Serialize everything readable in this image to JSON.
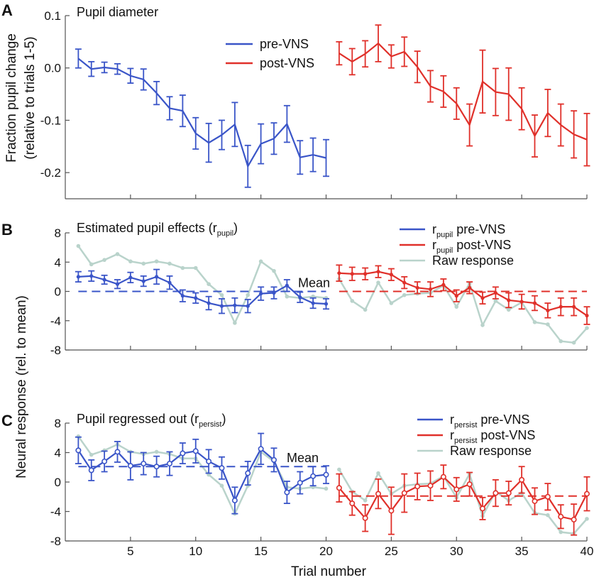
{
  "colors": {
    "pre": "#3a55c8",
    "post": "#e0302a",
    "raw": "#b9d3cb",
    "axis": "#555555"
  },
  "xaxis": {
    "label": "Trial number",
    "ticks": [
      5,
      10,
      15,
      20,
      25,
      30,
      35,
      40
    ],
    "xlim": [
      0,
      40
    ]
  },
  "ylabels": {
    "a_line1": "Fraction pupil change",
    "a_line2": "(relative to trials 1-5)",
    "bc": "Neural response (rel. to mean)"
  },
  "chart_data": [
    {
      "id": "A",
      "type": "line",
      "panel_letter": "A",
      "title": "Pupil diameter",
      "ylim": [
        -0.25,
        0.1
      ],
      "yticks": [
        0.1,
        0.0,
        -0.1,
        -0.2
      ],
      "ytick_labels": [
        "0.1",
        "0.0",
        "-0.1",
        "-0.2"
      ],
      "legend": [
        {
          "text": "pre-VNS",
          "color": "pre"
        },
        {
          "text": "post-VNS",
          "color": "post"
        }
      ],
      "series": [
        {
          "name": "pre-VNS",
          "color": "pre",
          "marker": "none",
          "x": [
            1,
            2,
            3,
            4,
            5,
            6,
            7,
            8,
            9,
            10,
            11,
            12,
            13,
            14,
            15,
            16,
            17,
            18,
            19,
            20
          ],
          "values": [
            0.018,
            -0.002,
            0.001,
            -0.002,
            -0.015,
            -0.022,
            -0.048,
            -0.077,
            -0.082,
            -0.125,
            -0.143,
            -0.128,
            -0.108,
            -0.188,
            -0.145,
            -0.135,
            -0.107,
            -0.171,
            -0.166,
            -0.172
          ],
          "errors": [
            0.018,
            0.014,
            0.01,
            0.01,
            0.014,
            0.02,
            0.022,
            0.022,
            0.03,
            0.03,
            0.037,
            0.028,
            0.042,
            0.04,
            0.038,
            0.03,
            0.035,
            0.032,
            0.032,
            0.035
          ]
        },
        {
          "name": "post-VNS",
          "color": "post",
          "marker": "none",
          "x": [
            21,
            22,
            23,
            24,
            25,
            26,
            27,
            28,
            29,
            30,
            31,
            32,
            33,
            34,
            35,
            36,
            37,
            38,
            39,
            40
          ],
          "values": [
            0.028,
            0.012,
            0.027,
            0.047,
            0.022,
            0.031,
            0.002,
            -0.035,
            -0.045,
            -0.068,
            -0.109,
            -0.026,
            -0.046,
            -0.05,
            -0.078,
            -0.13,
            -0.086,
            -0.109,
            -0.127,
            -0.137
          ],
          "errors": [
            0.022,
            0.025,
            0.025,
            0.035,
            0.022,
            0.028,
            0.03,
            0.03,
            0.03,
            0.03,
            0.04,
            0.06,
            0.045,
            0.05,
            0.04,
            0.04,
            0.045,
            0.04,
            0.045,
            0.05
          ]
        }
      ]
    },
    {
      "id": "B",
      "type": "line",
      "panel_letter": "B",
      "title": "Estimated pupil effects (r",
      "title_sub": "pupil",
      "title_end": ")",
      "ylim": [
        -8,
        8
      ],
      "yticks": [
        8,
        4,
        0,
        -4,
        -8
      ],
      "ytick_labels": [
        "8",
        "4",
        "0",
        "-4",
        "-8"
      ],
      "mean_label": "Mean",
      "means": [
        {
          "x_from": 1,
          "x_to": 20,
          "value": 0.0,
          "color": "pre"
        },
        {
          "x_from": 21,
          "x_to": 40,
          "value": 0.0,
          "color": "post"
        }
      ],
      "legend": [
        {
          "text": "r",
          "sub": "pupil",
          "rest": " pre-VNS",
          "color": "pre"
        },
        {
          "text": "r",
          "sub": "pupil",
          "rest": " post-VNS",
          "color": "post"
        },
        {
          "text": "Raw response",
          "sub": "",
          "rest": "",
          "color": "raw"
        }
      ],
      "raw": {
        "pre": {
          "x": [
            1,
            2,
            3,
            4,
            5,
            6,
            7,
            8,
            9,
            10,
            11,
            12,
            13,
            14,
            15,
            16,
            17,
            18,
            19,
            20
          ],
          "values": [
            6.2,
            3.7,
            4.3,
            5.1,
            4.1,
            3.8,
            4.1,
            3.8,
            3.2,
            3.2,
            1.0,
            -0.5,
            -4.3,
            -0.5,
            4.1,
            2.8,
            -0.7,
            -0.9,
            -0.7,
            -0.9
          ]
        },
        "post": {
          "x": [
            21,
            22,
            23,
            24,
            25,
            26,
            27,
            28,
            29,
            30,
            31,
            32,
            33,
            34,
            35,
            36,
            37,
            38,
            39,
            40
          ],
          "values": [
            1.7,
            -1.3,
            -2.5,
            1.2,
            -1.6,
            -0.5,
            -0.3,
            -0.2,
            0.8,
            -2.1,
            1.1,
            -4.6,
            -1.3,
            -2.5,
            -1.5,
            -4.2,
            -4.5,
            -6.8,
            -7.0,
            -5.0
          ]
        }
      },
      "series": [
        {
          "name": "r pupil pre-VNS",
          "color": "pre",
          "marker": "dot",
          "x": [
            1,
            2,
            3,
            4,
            5,
            6,
            7,
            8,
            9,
            10,
            11,
            12,
            13,
            14,
            15,
            16,
            17,
            18,
            19,
            20
          ],
          "values": [
            2.0,
            2.1,
            1.6,
            1.0,
            1.9,
            1.4,
            2.0,
            1.2,
            -0.6,
            -0.9,
            -1.6,
            -2.0,
            -1.9,
            -2.0,
            -0.3,
            -0.2,
            0.8,
            -0.8,
            -1.6,
            -1.7
          ],
          "errors": [
            0.7,
            0.7,
            0.6,
            0.6,
            0.7,
            0.7,
            1.0,
            0.9,
            0.8,
            0.7,
            0.9,
            1.0,
            1.0,
            0.9,
            0.9,
            0.8,
            0.8,
            0.7,
            0.7,
            0.7
          ]
        },
        {
          "name": "r pupil post-VNS",
          "color": "post",
          "marker": "dot",
          "x": [
            21,
            22,
            23,
            24,
            25,
            26,
            27,
            28,
            29,
            30,
            31,
            32,
            33,
            34,
            35,
            36,
            37,
            38,
            39,
            40
          ],
          "values": [
            2.5,
            2.4,
            2.4,
            2.7,
            2.3,
            1.2,
            0.5,
            0.3,
            0.9,
            -0.6,
            0.5,
            -0.9,
            -0.2,
            -1.2,
            -1.4,
            -1.6,
            -2.6,
            -2.1,
            -2.1,
            -3.3
          ],
          "errors": [
            1.1,
            0.9,
            0.8,
            0.8,
            0.8,
            0.8,
            0.8,
            1.0,
            0.8,
            0.8,
            0.8,
            0.8,
            0.8,
            1.0,
            1.0,
            1.0,
            1.0,
            1.2,
            1.2,
            1.2
          ]
        }
      ]
    },
    {
      "id": "C",
      "type": "line",
      "panel_letter": "C",
      "title": "Pupil regressed out (r",
      "title_sub": "persist",
      "title_end": ")",
      "ylim": [
        -8,
        8
      ],
      "yticks": [
        8,
        4,
        0,
        -4,
        -8
      ],
      "ytick_labels": [
        "8",
        "4",
        "0",
        "-4",
        "-8"
      ],
      "mean_label": "Mean",
      "means": [
        {
          "x_from": 1,
          "x_to": 20,
          "value": 2.1,
          "color": "pre"
        },
        {
          "x_from": 21,
          "x_to": 40,
          "value": -1.9,
          "color": "post"
        }
      ],
      "legend": [
        {
          "text": "r",
          "sub": "persist",
          "rest": " pre-VNS",
          "color": "pre"
        },
        {
          "text": "r",
          "sub": "persist",
          "rest": " post-VNS",
          "color": "post"
        },
        {
          "text": "Raw response",
          "sub": "",
          "rest": "",
          "color": "raw"
        }
      ],
      "raw": {
        "pre": {
          "x": [
            1,
            2,
            3,
            4,
            5,
            6,
            7,
            8,
            9,
            10,
            11,
            12,
            13,
            14,
            15,
            16,
            17,
            18,
            19,
            20
          ],
          "values": [
            6.2,
            3.7,
            4.3,
            5.1,
            4.1,
            3.8,
            4.1,
            3.8,
            3.2,
            3.2,
            1.0,
            -0.5,
            -4.3,
            -0.5,
            4.1,
            2.8,
            -0.7,
            -0.9,
            -0.7,
            -0.9
          ]
        },
        "post": {
          "x": [
            21,
            22,
            23,
            24,
            25,
            26,
            27,
            28,
            29,
            30,
            31,
            32,
            33,
            34,
            35,
            36,
            37,
            38,
            39,
            40
          ],
          "values": [
            1.7,
            -1.3,
            -2.5,
            1.2,
            -1.6,
            -0.5,
            -0.3,
            -0.2,
            0.8,
            -2.1,
            1.1,
            -4.6,
            -1.3,
            -2.5,
            -1.5,
            -4.2,
            -4.5,
            -6.8,
            -7.0,
            -5.0
          ]
        }
      },
      "series": [
        {
          "name": "r persist pre-VNS",
          "color": "pre",
          "marker": "circle",
          "x": [
            1,
            2,
            3,
            4,
            5,
            6,
            7,
            8,
            9,
            10,
            11,
            12,
            13,
            14,
            15,
            16,
            17,
            18,
            19,
            20
          ],
          "values": [
            4.3,
            1.6,
            2.8,
            4.1,
            2.2,
            2.5,
            2.1,
            2.5,
            3.9,
            4.2,
            2.8,
            1.9,
            -2.5,
            1.2,
            4.5,
            3.0,
            -1.4,
            -0.1,
            0.8,
            1.0
          ],
          "errors": [
            1.8,
            1.4,
            1.4,
            1.4,
            1.9,
            1.5,
            1.4,
            1.6,
            1.4,
            1.6,
            1.6,
            1.5,
            1.8,
            1.6,
            2.1,
            1.6,
            1.5,
            1.5,
            1.3,
            1.2
          ]
        },
        {
          "name": "r persist post-VNS",
          "color": "post",
          "marker": "circle",
          "x": [
            21,
            22,
            23,
            24,
            25,
            26,
            27,
            28,
            29,
            30,
            31,
            32,
            33,
            34,
            35,
            36,
            37,
            38,
            39,
            40
          ],
          "values": [
            -0.8,
            -2.9,
            -4.9,
            -1.6,
            -3.9,
            -1.5,
            -0.6,
            -0.5,
            0.7,
            -1.0,
            -0.3,
            -3.6,
            -1.5,
            -1.5,
            0.3,
            -2.6,
            -2.0,
            -4.7,
            -5.1,
            -1.6
          ],
          "errors": [
            1.9,
            1.6,
            1.8,
            2.0,
            3.2,
            2.6,
            1.8,
            2.0,
            1.6,
            1.6,
            1.6,
            1.5,
            1.8,
            1.6,
            1.8,
            1.8,
            1.8,
            1.6,
            2.1,
            2.3
          ]
        }
      ]
    }
  ]
}
